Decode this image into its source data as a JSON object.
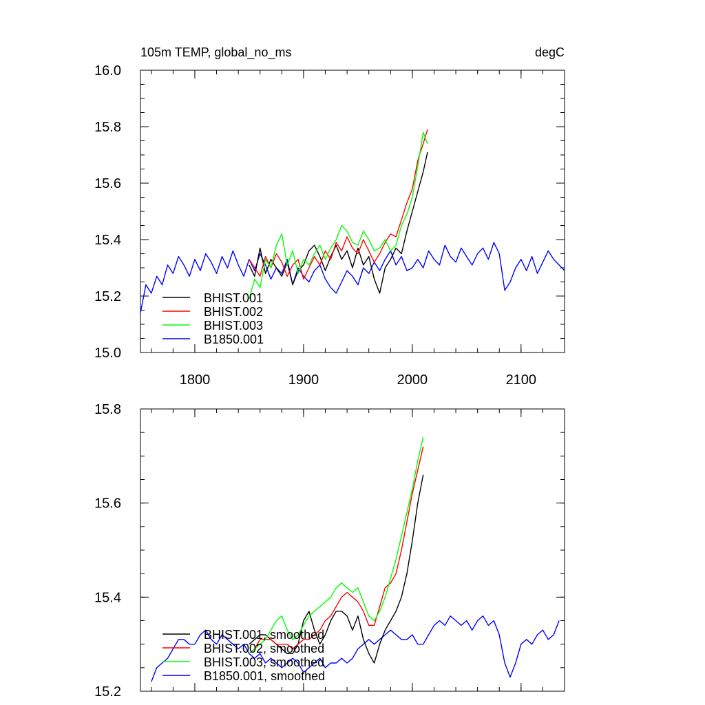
{
  "chart_data": [
    {
      "type": "line",
      "title_left": "105m TEMP, global_no_ms",
      "title_right": "degC",
      "xlim": [
        1750,
        2140
      ],
      "ylim": [
        15.0,
        16.0
      ],
      "xticks": [
        1800,
        1900,
        2000,
        2100
      ],
      "xtick_labels": [
        "1800",
        "1900",
        "2000",
        "2100"
      ],
      "yticks": [
        15.0,
        15.2,
        15.4,
        15.6,
        15.8,
        16.0
      ],
      "ytick_labels": [
        "15.0",
        "15.2",
        "15.4",
        "15.6",
        "15.8",
        "16.0"
      ],
      "legend": "bottom-left",
      "series": [
        {
          "name": "BHIST.001",
          "color": "#000000",
          "x": [
            1850,
            1855,
            1860,
            1865,
            1870,
            1875,
            1880,
            1885,
            1890,
            1895,
            1900,
            1905,
            1910,
            1915,
            1920,
            1925,
            1930,
            1935,
            1940,
            1945,
            1950,
            1955,
            1960,
            1965,
            1970,
            1975,
            1980,
            1985,
            1990,
            1995,
            2000,
            2005,
            2010,
            2014
          ],
          "y": [
            15.31,
            15.27,
            15.37,
            15.28,
            15.33,
            15.3,
            15.27,
            15.32,
            15.24,
            15.29,
            15.31,
            15.36,
            15.38,
            15.34,
            15.29,
            15.34,
            15.38,
            15.33,
            15.36,
            15.3,
            15.37,
            15.31,
            15.34,
            15.26,
            15.21,
            15.3,
            15.33,
            15.37,
            15.35,
            15.43,
            15.5,
            15.57,
            15.64,
            15.71
          ]
        },
        {
          "name": "BHIST.002",
          "color": "#ff0000",
          "x": [
            1850,
            1855,
            1860,
            1865,
            1870,
            1875,
            1880,
            1885,
            1890,
            1895,
            1900,
            1905,
            1910,
            1915,
            1920,
            1925,
            1930,
            1935,
            1940,
            1945,
            1950,
            1955,
            1960,
            1965,
            1970,
            1975,
            1980,
            1985,
            1990,
            1995,
            2000,
            2005,
            2010,
            2014
          ],
          "y": [
            15.33,
            15.3,
            15.27,
            15.34,
            15.3,
            15.35,
            15.32,
            15.27,
            15.31,
            15.33,
            15.26,
            15.3,
            15.34,
            15.31,
            15.36,
            15.33,
            15.39,
            15.36,
            15.41,
            15.37,
            15.35,
            15.4,
            15.36,
            15.32,
            15.35,
            15.39,
            15.42,
            15.41,
            15.47,
            15.53,
            15.58,
            15.68,
            15.74,
            15.79
          ]
        },
        {
          "name": "BHIST.003",
          "color": "#00ff00",
          "x": [
            1850,
            1855,
            1860,
            1865,
            1870,
            1875,
            1880,
            1885,
            1890,
            1895,
            1900,
            1905,
            1910,
            1915,
            1920,
            1925,
            1930,
            1935,
            1940,
            1945,
            1950,
            1955,
            1960,
            1965,
            1970,
            1975,
            1980,
            1985,
            1990,
            1995,
            2000,
            2005,
            2010,
            2014
          ],
          "y": [
            15.19,
            15.26,
            15.23,
            15.33,
            15.3,
            15.38,
            15.42,
            15.31,
            15.36,
            15.28,
            15.33,
            15.31,
            15.35,
            15.38,
            15.33,
            15.37,
            15.4,
            15.45,
            15.43,
            15.39,
            15.38,
            15.43,
            15.4,
            15.36,
            15.37,
            15.4,
            15.36,
            15.38,
            15.45,
            15.49,
            15.55,
            15.66,
            15.78,
            15.74
          ]
        },
        {
          "name": "B1850.001",
          "color": "#0000ff",
          "x": [
            1750,
            1755,
            1760,
            1765,
            1770,
            1775,
            1780,
            1785,
            1790,
            1795,
            1800,
            1805,
            1810,
            1815,
            1820,
            1825,
            1830,
            1835,
            1840,
            1845,
            1850,
            1855,
            1860,
            1865,
            1870,
            1875,
            1880,
            1885,
            1890,
            1895,
            1900,
            1905,
            1910,
            1915,
            1920,
            1925,
            1930,
            1935,
            1940,
            1945,
            1950,
            1955,
            1960,
            1965,
            1970,
            1975,
            1980,
            1985,
            1990,
            1995,
            2000,
            2005,
            2010,
            2015,
            2020,
            2025,
            2030,
            2035,
            2040,
            2045,
            2050,
            2055,
            2060,
            2065,
            2070,
            2075,
            2080,
            2085,
            2090,
            2095,
            2100,
            2105,
            2110,
            2115,
            2120,
            2125,
            2130,
            2135,
            2140
          ],
          "y": [
            15.14,
            15.24,
            15.21,
            15.27,
            15.24,
            15.31,
            15.28,
            15.34,
            15.31,
            15.27,
            15.33,
            15.29,
            15.35,
            15.32,
            15.28,
            15.34,
            15.3,
            15.36,
            15.31,
            15.27,
            15.33,
            15.29,
            15.35,
            15.31,
            15.26,
            15.3,
            15.28,
            15.33,
            15.24,
            15.3,
            15.27,
            15.25,
            15.29,
            15.31,
            15.26,
            15.23,
            15.21,
            15.25,
            15.29,
            15.27,
            15.24,
            15.3,
            15.28,
            15.32,
            15.29,
            15.33,
            15.36,
            15.31,
            15.34,
            15.29,
            15.3,
            15.33,
            15.3,
            15.36,
            15.33,
            15.31,
            15.38,
            15.34,
            15.32,
            15.37,
            15.34,
            15.31,
            15.35,
            15.37,
            15.33,
            15.39,
            15.35,
            15.22,
            15.25,
            15.3,
            15.33,
            15.29,
            15.34,
            15.28,
            15.32,
            15.36,
            15.33,
            15.31,
            15.29
          ]
        }
      ]
    },
    {
      "type": "line",
      "xlim": [
        1750,
        2140
      ],
      "ylim": [
        15.2,
        15.8
      ],
      "xticks": [
        1800,
        1900,
        2000,
        2100
      ],
      "yticks": [
        15.2,
        15.4,
        15.6,
        15.8
      ],
      "ytick_labels": [
        "15.2",
        "15.4",
        "15.6",
        "15.8"
      ],
      "legend": "bottom-left",
      "series": [
        {
          "name": "BHIST.001, smoothed",
          "color": "#000000",
          "x": [
            1850,
            1855,
            1860,
            1865,
            1870,
            1875,
            1880,
            1885,
            1890,
            1895,
            1900,
            1905,
            1910,
            1915,
            1920,
            1925,
            1930,
            1935,
            1940,
            1945,
            1950,
            1955,
            1960,
            1965,
            1970,
            1975,
            1980,
            1985,
            1990,
            1995,
            2000,
            2005,
            2010
          ],
          "y": [
            15.3,
            15.31,
            15.32,
            15.32,
            15.31,
            15.3,
            15.29,
            15.28,
            15.28,
            15.3,
            15.35,
            15.37,
            15.33,
            15.3,
            15.32,
            15.35,
            15.37,
            15.37,
            15.36,
            15.33,
            15.36,
            15.31,
            15.28,
            15.26,
            15.3,
            15.33,
            15.35,
            15.37,
            15.4,
            15.45,
            15.52,
            15.6,
            15.66
          ]
        },
        {
          "name": "BHIST.002, smoothed",
          "color": "#ff0000",
          "x": [
            1850,
            1855,
            1860,
            1865,
            1870,
            1875,
            1880,
            1885,
            1890,
            1895,
            1900,
            1905,
            1910,
            1915,
            1920,
            1925,
            1930,
            1935,
            1940,
            1945,
            1950,
            1955,
            1960,
            1965,
            1970,
            1975,
            1980,
            1985,
            1990,
            1995,
            2000,
            2005,
            2010
          ],
          "y": [
            15.28,
            15.29,
            15.31,
            15.31,
            15.31,
            15.3,
            15.3,
            15.3,
            15.29,
            15.3,
            15.31,
            15.31,
            15.32,
            15.33,
            15.35,
            15.36,
            15.38,
            15.4,
            15.41,
            15.4,
            15.39,
            15.37,
            15.34,
            15.34,
            15.38,
            15.42,
            15.43,
            15.45,
            15.5,
            15.56,
            15.62,
            15.67,
            15.72
          ]
        },
        {
          "name": "BHIST.003, smoothed",
          "color": "#00ff00",
          "x": [
            1850,
            1855,
            1860,
            1865,
            1870,
            1875,
            1880,
            1885,
            1890,
            1895,
            1900,
            1905,
            1910,
            1915,
            1920,
            1925,
            1930,
            1935,
            1940,
            1945,
            1950,
            1955,
            1960,
            1965,
            1970,
            1975,
            1980,
            1985,
            1990,
            1995,
            2000,
            2005,
            2010
          ],
          "y": [
            15.28,
            15.29,
            15.3,
            15.31,
            15.33,
            15.35,
            15.36,
            15.33,
            15.31,
            15.32,
            15.34,
            15.36,
            15.37,
            15.38,
            15.39,
            15.4,
            15.42,
            15.43,
            15.42,
            15.41,
            15.42,
            15.39,
            15.36,
            15.35,
            15.37,
            15.4,
            15.44,
            15.48,
            15.53,
            15.58,
            15.63,
            15.69,
            15.74
          ]
        },
        {
          "name": "B1850.001, smoothed",
          "color": "#0000ff",
          "x": [
            1760,
            1765,
            1770,
            1775,
            1780,
            1785,
            1790,
            1795,
            1800,
            1805,
            1810,
            1815,
            1820,
            1825,
            1830,
            1835,
            1840,
            1845,
            1850,
            1855,
            1860,
            1865,
            1870,
            1875,
            1880,
            1885,
            1890,
            1895,
            1900,
            1905,
            1910,
            1915,
            1920,
            1925,
            1930,
            1935,
            1940,
            1945,
            1950,
            1955,
            1960,
            1965,
            1970,
            1975,
            1980,
            1985,
            1990,
            1995,
            2000,
            2005,
            2010,
            2015,
            2020,
            2025,
            2030,
            2035,
            2040,
            2045,
            2050,
            2055,
            2060,
            2065,
            2070,
            2075,
            2080,
            2085,
            2090,
            2095,
            2100,
            2105,
            2110,
            2115,
            2120,
            2125,
            2130,
            2135
          ],
          "y": [
            15.22,
            15.25,
            15.26,
            15.27,
            15.29,
            15.31,
            15.31,
            15.3,
            15.3,
            15.32,
            15.33,
            15.31,
            15.3,
            15.32,
            15.31,
            15.3,
            15.29,
            15.3,
            15.28,
            15.27,
            15.28,
            15.26,
            15.27,
            15.26,
            15.25,
            15.26,
            15.27,
            15.26,
            15.24,
            15.25,
            15.26,
            15.27,
            15.25,
            15.26,
            15.26,
            15.27,
            15.26,
            15.27,
            15.29,
            15.3,
            15.31,
            15.3,
            15.31,
            15.32,
            15.33,
            15.32,
            15.31,
            15.31,
            15.32,
            15.3,
            15.3,
            15.32,
            15.34,
            15.35,
            15.34,
            15.36,
            15.35,
            15.34,
            15.35,
            15.33,
            15.35,
            15.36,
            15.34,
            15.35,
            15.32,
            15.26,
            15.23,
            15.26,
            15.3,
            15.31,
            15.3,
            15.32,
            15.33,
            15.31,
            15.32,
            15.35
          ]
        }
      ]
    }
  ]
}
